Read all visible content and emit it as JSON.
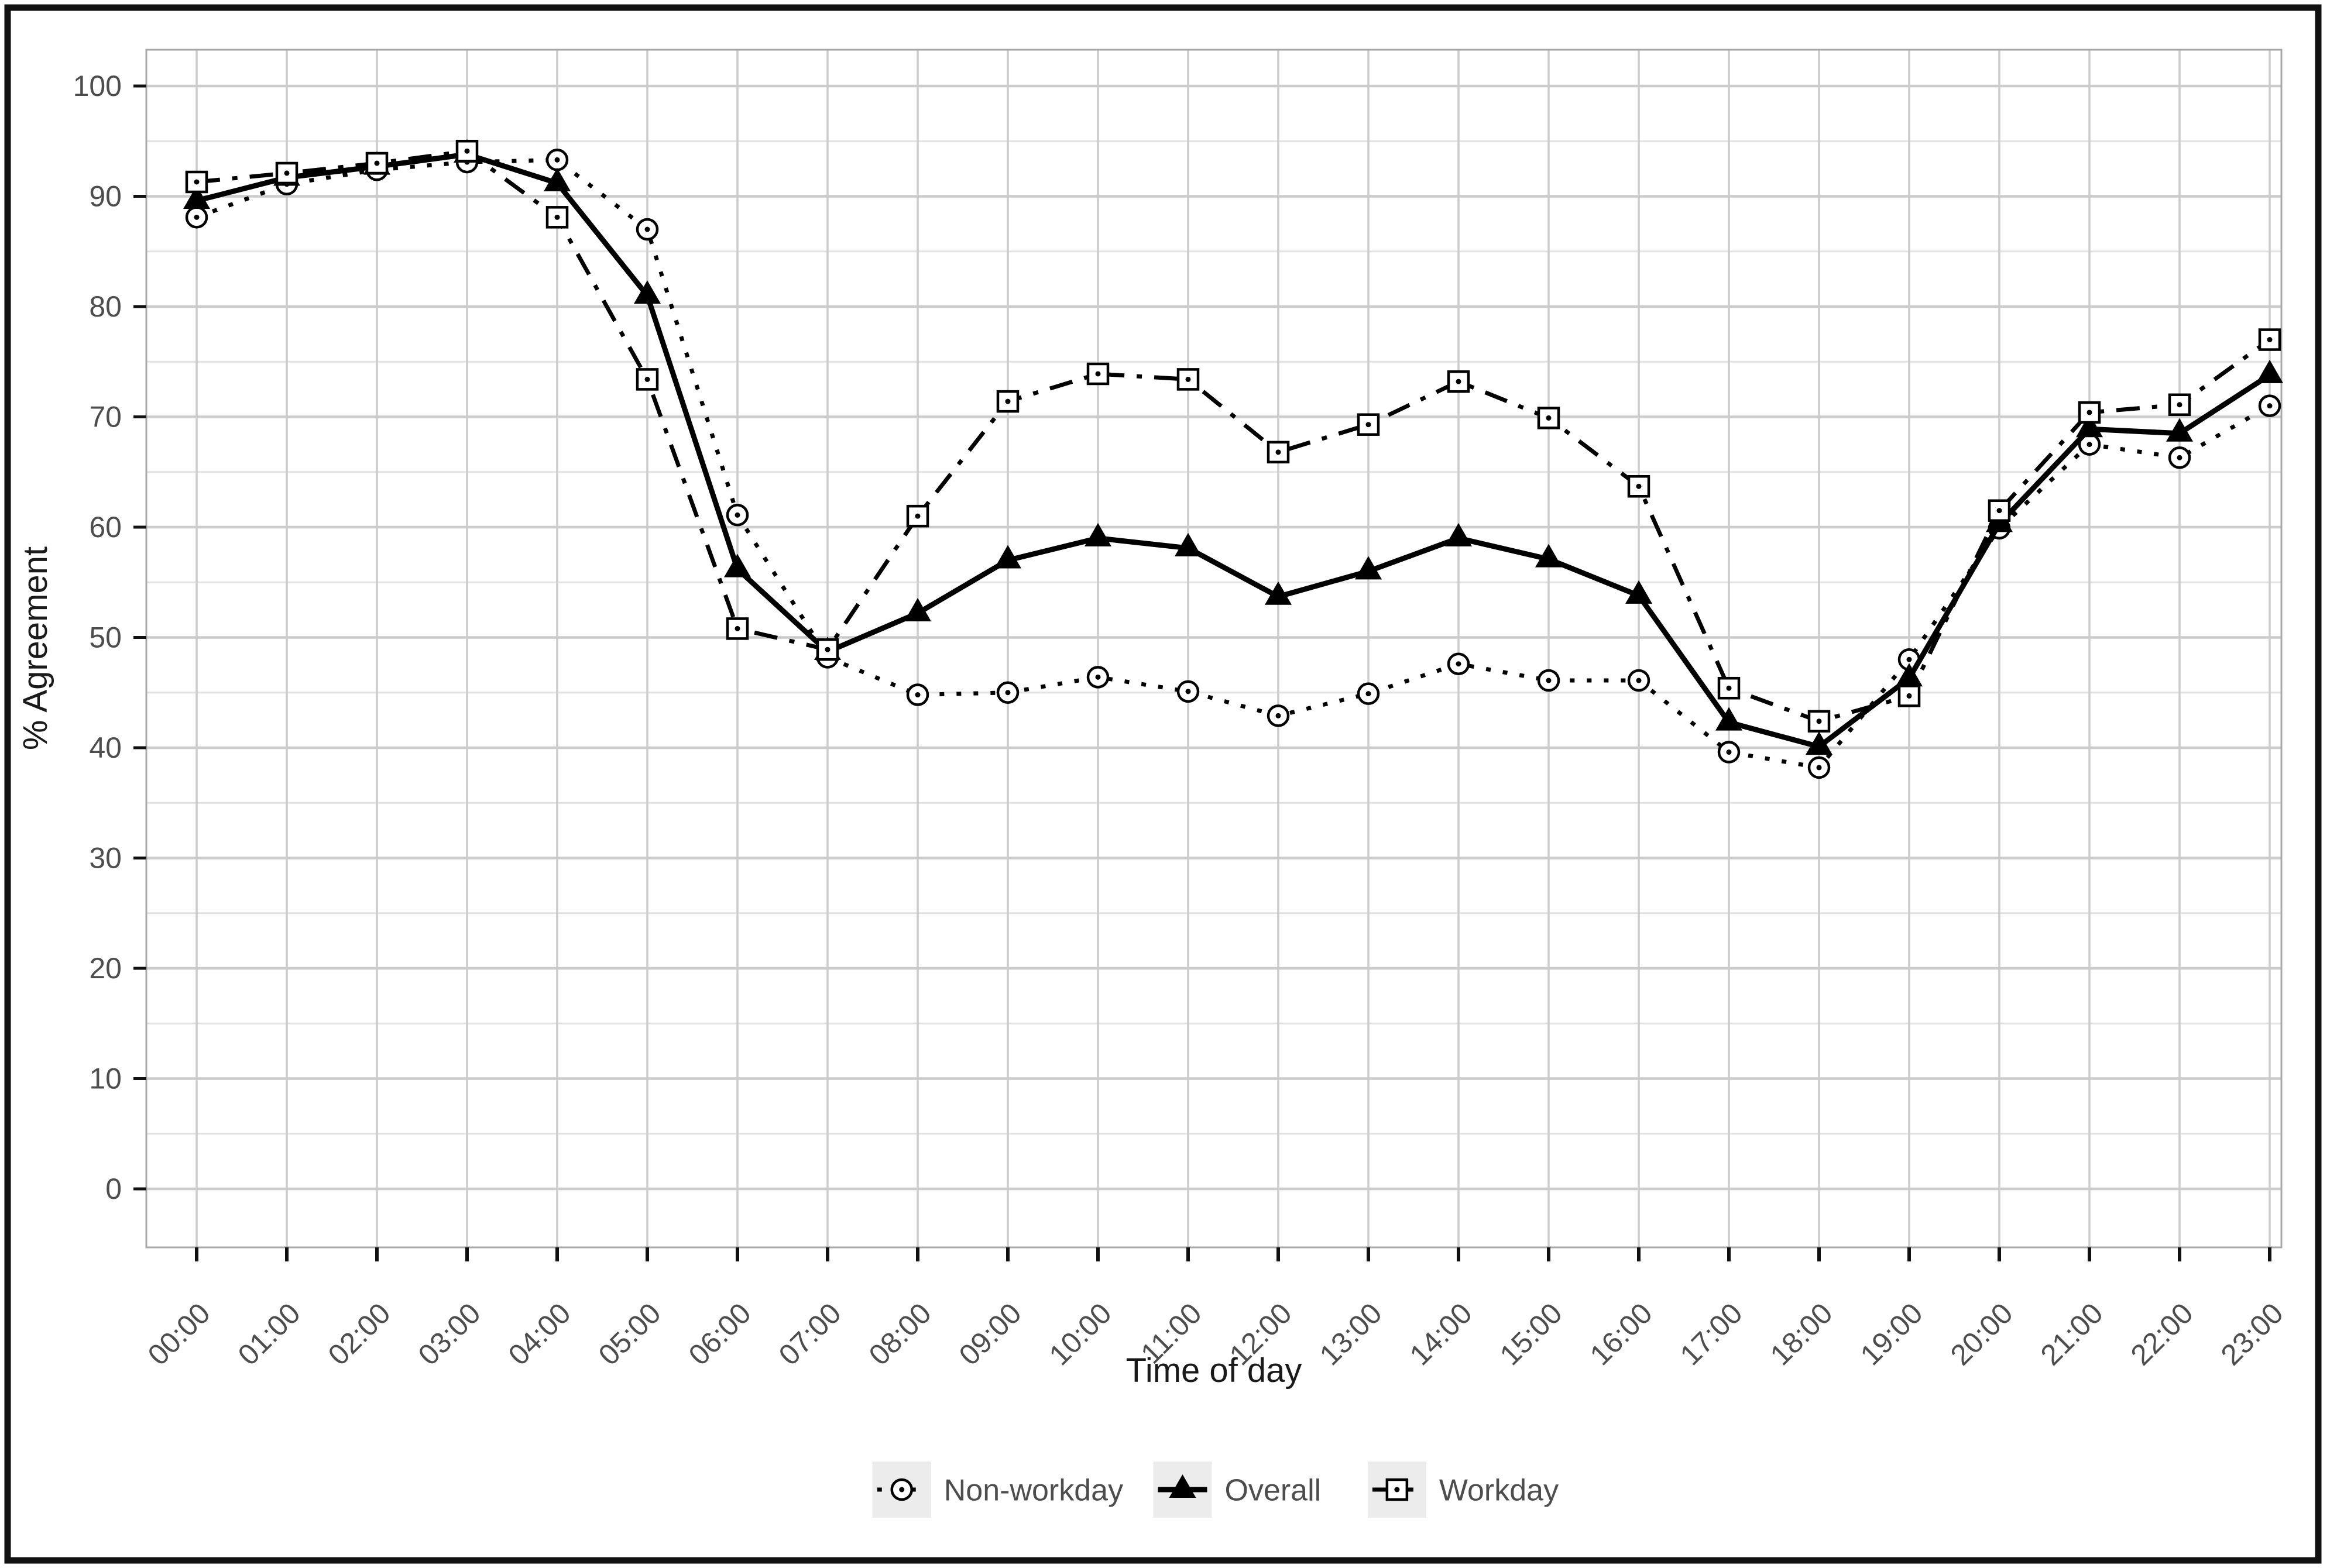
{
  "figure": {
    "background": "#ffffff",
    "outer_border_color": "#111111",
    "panel_border_color": "#a8a8a8",
    "grid_major_color": "#cccccc",
    "grid_minor_color": "#e2e2e2",
    "tick_label_color": "#4d4d4d",
    "series_color": "#000000",
    "legend_key_background": "#ececec"
  },
  "chart_data": {
    "type": "line",
    "title": "",
    "xlabel": "Time of day",
    "ylabel": "% Agreement",
    "ylim": [
      0,
      100
    ],
    "y_major_ticks": [
      0,
      10,
      20,
      30,
      40,
      50,
      60,
      70,
      80,
      90,
      100
    ],
    "y_minor_ticks": [
      5,
      15,
      25,
      35,
      45,
      55,
      65,
      75,
      85,
      95
    ],
    "grid": "horizontal major+minor, vertical at every hour",
    "legend_position": "bottom-center",
    "categories": [
      "00:00",
      "01:00",
      "02:00",
      "03:00",
      "04:00",
      "05:00",
      "06:00",
      "07:00",
      "08:00",
      "09:00",
      "10:00",
      "11:00",
      "12:00",
      "13:00",
      "14:00",
      "15:00",
      "16:00",
      "17:00",
      "18:00",
      "19:00",
      "20:00",
      "21:00",
      "22:00",
      "23:00"
    ],
    "series": [
      {
        "name": "Non-workday",
        "line_style": "dotted",
        "marker": "circle-dot",
        "values": [
          88.1,
          91.1,
          92.4,
          93.1,
          93.3,
          87.0,
          61.1,
          48.2,
          44.8,
          45.0,
          46.4,
          45.1,
          42.9,
          44.9,
          47.6,
          46.1,
          46.1,
          39.6,
          38.2,
          48.0,
          59.9,
          67.5,
          66.3,
          71.0
        ]
      },
      {
        "name": "Overall",
        "line_style": "solid",
        "marker": "triangle-filled",
        "values": [
          89.6,
          91.7,
          92.7,
          93.8,
          91.2,
          81.0,
          56.2,
          48.7,
          52.2,
          57.0,
          59.0,
          58.1,
          53.7,
          56.0,
          59.0,
          57.1,
          53.8,
          42.3,
          40.1,
          46.3,
          60.3,
          68.9,
          68.5,
          73.8
        ]
      },
      {
        "name": "Workday",
        "line_style": "dashdot",
        "marker": "square-dot",
        "values": [
          91.3,
          92.1,
          93.0,
          94.1,
          88.1,
          73.4,
          50.8,
          48.9,
          61.0,
          71.4,
          73.9,
          73.4,
          66.8,
          69.3,
          73.2,
          69.9,
          63.7,
          45.4,
          42.4,
          44.7,
          61.5,
          70.4,
          71.1,
          77.0
        ]
      }
    ]
  }
}
